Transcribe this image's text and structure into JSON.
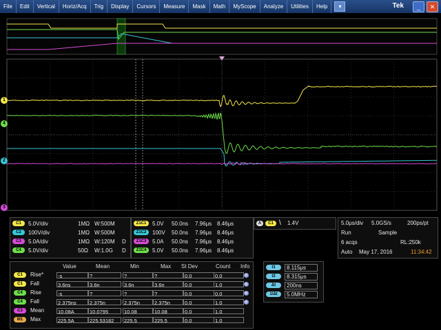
{
  "menu": {
    "items": [
      "File",
      "Edit",
      "Vertical",
      "Horiz/Acq",
      "Trig",
      "Display",
      "Cursors",
      "Measure",
      "Mask",
      "Math",
      "MyScope",
      "Analyze",
      "Utilities",
      "Help"
    ],
    "brand": "Tek"
  },
  "colors": {
    "ch1": "#f4e84a",
    "ch2": "#35c9d8",
    "ch3": "#d84bd8",
    "ch4": "#6ee04a",
    "graticule": "#3a3a3a"
  },
  "channel_markers": [
    "1",
    "4",
    "2",
    "3"
  ],
  "channels": [
    {
      "id": "C1",
      "scale": "5.0V/div",
      "imp": "1MΩ",
      "bw": "W:500M",
      "color": "#f4e84a"
    },
    {
      "id": "C2",
      "scale": "100V/div",
      "imp": "1MΩ",
      "bw": "W:500M",
      "color": "#35c9d8"
    },
    {
      "id": "C3",
      "scale": "5.0A/div",
      "imp": "1MΩ",
      "bw": "W:120M",
      "color": "#d84bd8",
      "extra": "D"
    },
    {
      "id": "C4",
      "scale": "5.0V/div",
      "imp": "50Ω",
      "bw": "W:1.0G",
      "color": "#6ee04a",
      "extra": "D"
    }
  ],
  "zooms": [
    {
      "id": "Z1C1",
      "scale": "5.0V",
      "time": "50.0ns",
      "t1": "7.96μs",
      "t2": "8.46μs",
      "color": "#f4e84a"
    },
    {
      "id": "Z1C2",
      "scale": "100V",
      "time": "50.0ns",
      "t1": "7.96μs",
      "t2": "8.46μs",
      "color": "#35c9d8"
    },
    {
      "id": "Z1C3",
      "scale": "5.0A",
      "time": "50.0ns",
      "t1": "7.96μs",
      "t2": "8.46μs",
      "color": "#d84bd8"
    },
    {
      "id": "Z1C4",
      "scale": "5.0V",
      "time": "50.0ns",
      "t1": "7.96μs",
      "t2": "8.46μs",
      "color": "#6ee04a"
    }
  ],
  "trigger": {
    "mode": "A",
    "source": "C1",
    "slope": "\\",
    "level": "1.4V"
  },
  "acquisition": {
    "timebase": "5.0μs/div",
    "rate": "5.0GS/s",
    "resolution": "200ps/pt",
    "state": "Run",
    "mode": "Sample",
    "acqs": "6 acqs",
    "record": "RL:250k",
    "trigmode": "Auto",
    "date": "May 17, 2016",
    "time": "11:34:42"
  },
  "measurements": {
    "headers": [
      "Value",
      "Mean",
      "Min",
      "Max",
      "St Dev",
      "Count",
      "Info"
    ],
    "rows": [
      {
        "chip": "C1",
        "name": "Rise*",
        "value": "-s",
        "mean": "?",
        "min": "?",
        "max": "?",
        "stdev": "0.0",
        "count": "0.0",
        "color": "#f4e84a"
      },
      {
        "chip": "C1",
        "name": "Fall",
        "value": "3.6ns",
        "mean": "3.6n",
        "min": "3.6n",
        "max": "3.6n",
        "stdev": "0.0",
        "count": "1.0",
        "color": "#f4e84a"
      },
      {
        "chip": "C4",
        "name": "Rise",
        "value": "-s",
        "mean": "?",
        "min": "?",
        "max": "?",
        "stdev": "0.0",
        "count": "0.0",
        "color": "#6ee04a"
      },
      {
        "chip": "C4",
        "name": "Fall",
        "value": "2.375ns",
        "mean": "2.375n",
        "min": "2.375n",
        "max": "2.375n",
        "stdev": "0.0",
        "count": "1.0",
        "color": "#6ee04a"
      },
      {
        "chip": "C3",
        "name": "Mean",
        "value": "10.08A",
        "mean": "10.0795",
        "min": "10.08",
        "max": "10.08",
        "stdev": "0.0",
        "count": "1.0",
        "color": "#d84bd8"
      },
      {
        "chip": "M1",
        "name": "Max",
        "value": "225.5A",
        "mean": "225.53182",
        "min": "225.5",
        "max": "225.5",
        "stdev": "0.0",
        "count": "1.0",
        "color": "#e9a94a"
      }
    ]
  },
  "cursors": [
    {
      "label": "t1",
      "value": "8.115μs"
    },
    {
      "label": "t2",
      "value": "8.315μs"
    },
    {
      "label": "Δt",
      "value": "200ns"
    },
    {
      "label": "1/Δt",
      "value": "5.0MHz"
    }
  ]
}
